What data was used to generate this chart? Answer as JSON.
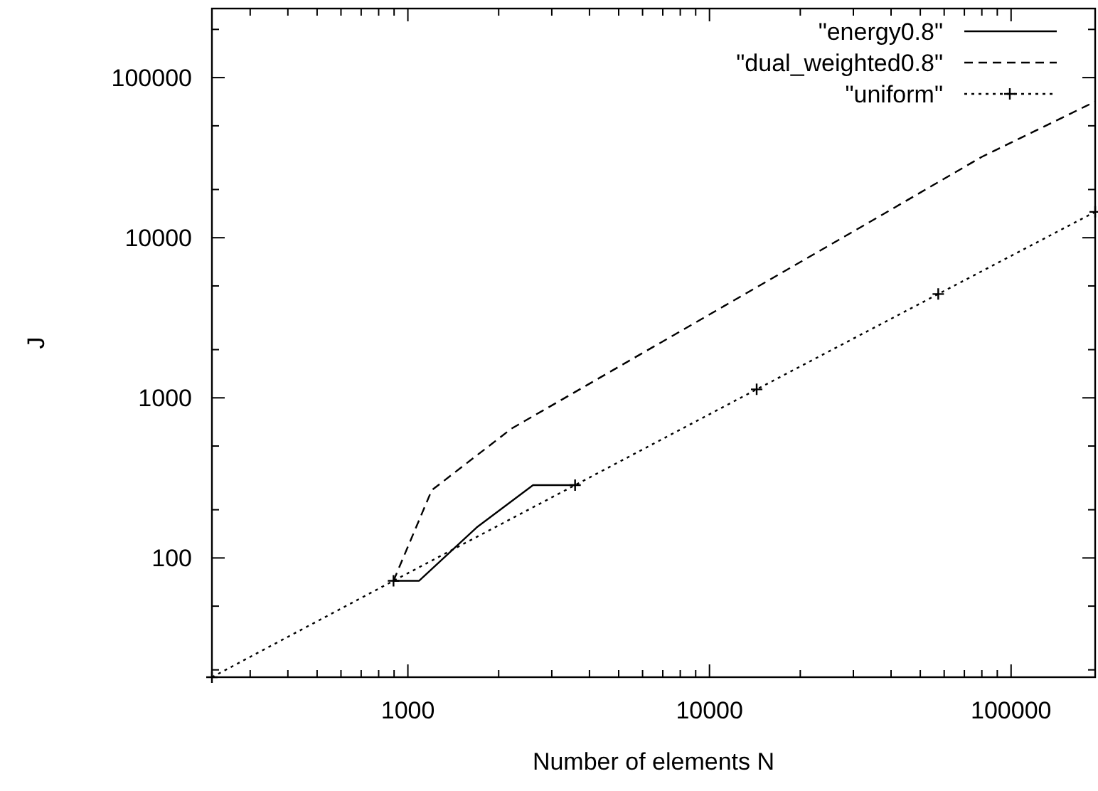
{
  "chart_data": {
    "type": "line",
    "xlabel": "Number of elements N",
    "ylabel": "J",
    "log": "xy",
    "xlim": [
      224,
      190000
    ],
    "ylim": [
      18,
      270000
    ],
    "xticks": [
      {
        "value": 300,
        "label": null
      },
      {
        "value": 400,
        "label": null
      },
      {
        "value": 500,
        "label": null
      },
      {
        "value": 600,
        "label": null
      },
      {
        "value": 700,
        "label": null
      },
      {
        "value": 800,
        "label": null
      },
      {
        "value": 900,
        "label": null
      },
      1000,
      {
        "value": 2000,
        "label": null
      },
      {
        "value": 3000,
        "label": null
      },
      {
        "value": 4000,
        "label": null
      },
      {
        "value": 5000,
        "label": null
      },
      {
        "value": 6000,
        "label": null
      },
      {
        "value": 7000,
        "label": null
      },
      {
        "value": 8000,
        "label": null
      },
      {
        "value": 9000,
        "label": null
      },
      10000,
      {
        "value": 20000,
        "label": null
      },
      {
        "value": 30000,
        "label": null
      },
      {
        "value": 40000,
        "label": null
      },
      {
        "value": 50000,
        "label": null
      },
      {
        "value": 60000,
        "label": null
      },
      {
        "value": 70000,
        "label": null
      },
      {
        "value": 80000,
        "label": null
      },
      {
        "value": 90000,
        "label": null
      },
      100000
    ],
    "yticks": [
      {
        "value": 20,
        "label": null
      },
      {
        "value": 50,
        "label": null
      },
      100,
      {
        "value": 200,
        "label": null
      },
      {
        "value": 500,
        "label": null
      },
      1000,
      {
        "value": 2000,
        "label": null
      },
      {
        "value": 5000,
        "label": null
      },
      10000,
      {
        "value": 20000,
        "label": null
      },
      {
        "value": 50000,
        "label": null
      },
      100000,
      {
        "value": 200000,
        "label": null
      }
    ],
    "grid": false,
    "legend": "top right",
    "series": [
      {
        "name": "\"energy0.8\"",
        "color": "#000000",
        "line_style": "solid",
        "marker": "none",
        "x": [
          896,
          1090,
          1690,
          2600,
          3584
        ],
        "values": [
          72,
          72,
          155,
          285,
          285
        ]
      },
      {
        "name": "\"dual_weighted0.8\"",
        "color": "#000000",
        "line_style": "dashed",
        "marker": "none",
        "x": [
          896,
          1200,
          2200,
          31400,
          80000,
          190000
        ],
        "values": [
          72,
          265,
          640,
          11500,
          32000,
          70800
        ]
      },
      {
        "name": "\"uniform\"",
        "color": "#000000",
        "line_style": "dotted",
        "marker": "cross",
        "x": [
          224,
          896,
          3584,
          14336,
          57344,
          190000
        ],
        "values": [
          18,
          72,
          285,
          1130,
          4450,
          14500
        ]
      }
    ]
  }
}
